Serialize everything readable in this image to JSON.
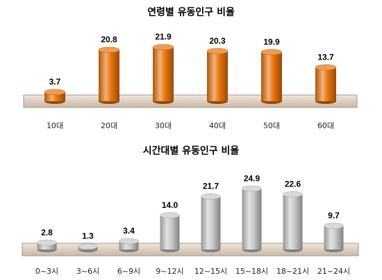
{
  "chart_data": [
    {
      "type": "bar",
      "title": "연령별 유동인구 비율",
      "categories": [
        "10대",
        "20대",
        "30대",
        "40대",
        "50대",
        "60대"
      ],
      "values": [
        3.7,
        20.8,
        21.9,
        20.3,
        19.9,
        13.7
      ],
      "color": "#e8730c"
    },
    {
      "type": "bar",
      "title": "시간대별 유동인구 비율",
      "categories": [
        "0~3시",
        "3~6시",
        "6~9시",
        "9~12시",
        "12~15시",
        "15~18시",
        "18~21시",
        "21~24시"
      ],
      "values": [
        2.8,
        1.3,
        3.4,
        14.0,
        21.7,
        24.9,
        22.6,
        9.7
      ],
      "value_labels": [
        "2.8",
        "1.3",
        "3.4",
        "14.0",
        "21.7",
        "24.9",
        "22.6",
        "9.7"
      ],
      "color": "#c8c8c8"
    }
  ]
}
